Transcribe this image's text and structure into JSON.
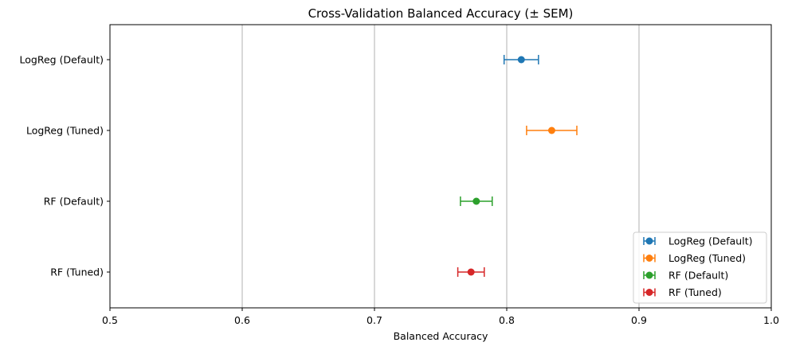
{
  "chart_data": {
    "type": "scatter",
    "title": "Cross-Validation Balanced Accuracy (± SEM)",
    "xlabel": "Balanced Accuracy",
    "ylabel": "",
    "xlim": [
      0.5,
      1.0
    ],
    "xticks": [
      "0.5",
      "0.6",
      "0.7",
      "0.8",
      "0.9",
      "1.0"
    ],
    "grid": "vertical",
    "legend_position": "lower-right",
    "categories": [
      "LogReg (Default)",
      "LogReg (Tuned)",
      "RF (Default)",
      "RF (Tuned)"
    ],
    "series": [
      {
        "name": "LogReg (Default)",
        "category": "LogReg (Default)",
        "value": 0.811,
        "error": 0.013,
        "color": "#1f77b4"
      },
      {
        "name": "LogReg (Tuned)",
        "category": "LogReg (Tuned)",
        "value": 0.834,
        "error": 0.019,
        "color": "#ff7f0e"
      },
      {
        "name": "RF (Default)",
        "category": "RF (Default)",
        "value": 0.777,
        "error": 0.012,
        "color": "#2ca02c"
      },
      {
        "name": "RF (Tuned)",
        "category": "RF (Tuned)",
        "value": 0.773,
        "error": 0.01,
        "color": "#d62728"
      }
    ]
  }
}
